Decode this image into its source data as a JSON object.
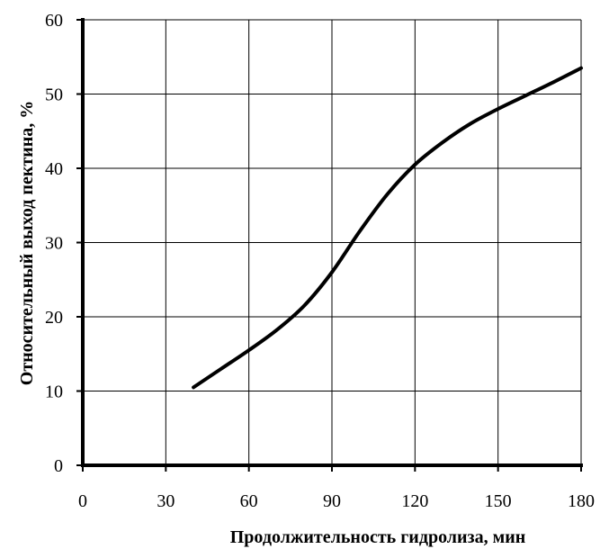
{
  "chart_data": {
    "type": "line",
    "title": "",
    "xlabel": "Продолжительность гидролиза, мин",
    "ylabel": "Относительный выход пектина, %",
    "xlim": [
      0,
      180
    ],
    "ylim": [
      0,
      60
    ],
    "xticks": [
      0,
      30,
      60,
      90,
      120,
      150,
      180
    ],
    "yticks": [
      0,
      10,
      20,
      30,
      40,
      50,
      60
    ],
    "grid": true,
    "series": [
      {
        "color": "#000000",
        "x": [
          40,
          50,
          60,
          70,
          80,
          90,
          100,
          110,
          120,
          130,
          140,
          150,
          160,
          170,
          180
        ],
        "y": [
          10.5,
          13.0,
          15.5,
          18.2,
          21.5,
          26.0,
          31.5,
          36.5,
          40.5,
          43.5,
          46.0,
          48.0,
          49.8,
          51.6,
          53.5
        ]
      }
    ]
  }
}
